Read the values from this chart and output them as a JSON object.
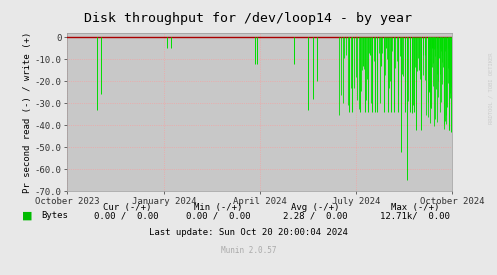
{
  "title": "Disk throughput for /dev/loop14 - by year",
  "ylabel": "Pr second read (-) / write (+)",
  "ylim": [
    -70,
    0
  ],
  "yticks": [
    0,
    -10,
    -20,
    -30,
    -40,
    -50,
    -60,
    -70
  ],
  "bg_color": "#e8e8e8",
  "plot_bg_color": "#c8c8c8",
  "grid_color_x": "#ff9999",
  "grid_color_y": "#ff9999",
  "line_color": "#00dd00",
  "spine_color": "#aaaaaa",
  "zero_line_color": "#aa0000",
  "watermark_text": "RRDTOOL / TOBI OETIKER",
  "legend_label": "Bytes",
  "legend_color": "#00bb00",
  "last_update": "Last update: Sun Oct 20 20:00:04 2024",
  "munin_text": "Munin 2.0.57",
  "x_tick_positions": [
    0,
    92,
    183,
    274,
    365
  ],
  "x_tick_labels": [
    "October 2023",
    "January 2024",
    "April 2024",
    "July 2024",
    "October 2024"
  ],
  "spike_positions": [
    [
      28,
      -33
    ],
    [
      32,
      -26
    ],
    [
      95,
      -5
    ],
    [
      98,
      -5
    ],
    [
      178,
      -12
    ],
    [
      180,
      -12
    ],
    [
      215,
      -12
    ],
    [
      228,
      -33
    ],
    [
      233,
      -28
    ],
    [
      237,
      -20
    ],
    [
      267,
      -34
    ],
    [
      270,
      -34
    ],
    [
      278,
      -34
    ],
    [
      280,
      -13
    ],
    [
      282,
      -34
    ],
    [
      285,
      -34
    ],
    [
      287,
      -8
    ],
    [
      289,
      -34
    ],
    [
      292,
      -34
    ],
    [
      294,
      -34
    ],
    [
      297,
      -13
    ],
    [
      300,
      -34
    ],
    [
      302,
      -5
    ],
    [
      304,
      -34
    ],
    [
      307,
      -34
    ],
    [
      310,
      -34
    ],
    [
      314,
      -34
    ],
    [
      316,
      -52
    ],
    [
      320,
      -34
    ],
    [
      322,
      -65
    ],
    [
      325,
      -34
    ],
    [
      327,
      -34
    ],
    [
      329,
      -34
    ],
    [
      331,
      -42
    ],
    [
      333,
      -15
    ],
    [
      335,
      -42
    ],
    [
      337,
      -8
    ],
    [
      339,
      -8
    ],
    [
      342,
      -5
    ],
    [
      344,
      -5
    ],
    [
      346,
      -5
    ],
    [
      347,
      -5
    ],
    [
      349,
      -5
    ],
    [
      351,
      -5
    ],
    [
      353,
      -5
    ],
    [
      355,
      -8
    ],
    [
      357,
      -18
    ],
    [
      359,
      -5
    ],
    [
      361,
      -5
    ],
    [
      362,
      -42
    ],
    [
      364,
      -43
    ]
  ],
  "dense_spikes_jul_aug": {
    "start": 258,
    "end": 342,
    "count": 55,
    "seed": 77,
    "min_depth": -5,
    "max_depth": -38
  },
  "dense_spikes_oct": {
    "start": 342,
    "end": 366,
    "count": 45,
    "seed": 88,
    "min_depth": -5,
    "max_depth": -43
  }
}
